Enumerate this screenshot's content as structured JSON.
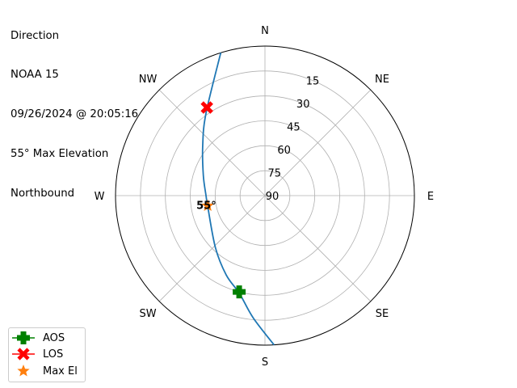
{
  "title_lines": [
    "Direction",
    "NOAA 15",
    "09/26/2024 @ 20:05:16",
    "55° Max Elevation",
    "Northbound"
  ],
  "chart_data": {
    "type": "polar-line",
    "radial_axis": {
      "quantity": "elevation",
      "inverted": true,
      "range": [
        90,
        0
      ],
      "tick_labels": [
        "90",
        "75",
        "60",
        "45",
        "30",
        "15"
      ],
      "ticks": [
        90,
        75,
        60,
        45,
        30,
        15
      ]
    },
    "angular_axis": {
      "direction": "clockwise",
      "zero": "north",
      "tick_labels": [
        "N",
        "NE",
        "E",
        "SE",
        "S",
        "SW",
        "W",
        "NW"
      ],
      "ticks": [
        0,
        45,
        90,
        135,
        180,
        225,
        270,
        315
      ]
    },
    "grid": true,
    "track": {
      "color": "#1f77b4",
      "az": [
        342.8,
        324.4,
        308.8,
        288.3,
        270,
        258.3,
        223.5,
        206.1,
        194.5,
        185.5,
        176.5
      ],
      "el": [
        0,
        29.0,
        41.9,
        50.9,
        54.5,
        54.9,
        46.7,
        36.9,
        29.0,
        16.1,
        0
      ]
    },
    "markers": [
      {
        "name": "AOS",
        "az": 195,
        "el": 30,
        "color": "#008000",
        "symbol": "plus"
      },
      {
        "name": "LOS",
        "az": 326.6,
        "el": 26.5,
        "color": "#ff0000",
        "symbol": "x"
      },
      {
        "name": "Max El",
        "az": 260,
        "el": 55,
        "color": "#ff7f0e",
        "symbol": "star"
      }
    ],
    "annotation": "55°",
    "legend_position": "lower-left"
  }
}
